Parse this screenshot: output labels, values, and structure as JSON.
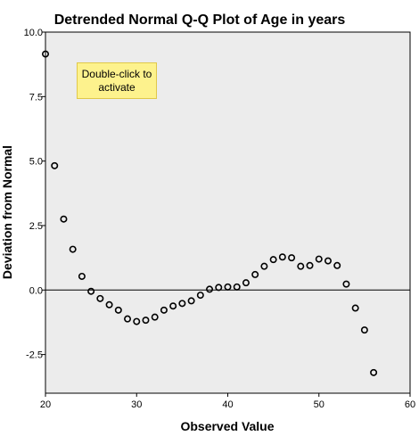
{
  "overlay": {
    "activate_hint": "Double-click to activate"
  },
  "chart_data": {
    "type": "scatter",
    "title": "Detrended Normal Q-Q Plot of Age in years",
    "xlabel": "Observed Value",
    "ylabel": "Deviation from Normal",
    "xlim": [
      20,
      60
    ],
    "ylim": [
      -4,
      10
    ],
    "x_ticks": [
      20,
      30,
      40,
      50,
      60
    ],
    "x_tick_labels": [
      "20",
      "30",
      "40",
      "50",
      "60"
    ],
    "y_ticks": [
      10,
      7.5,
      5,
      2.5,
      0,
      -2.5
    ],
    "y_tick_labels": [
      "10.0",
      "7.5",
      "5.0",
      "2.5",
      "0.0",
      "-2.5"
    ],
    "reference_line": {
      "y": 0
    },
    "grid": false,
    "background": "#ececec",
    "marker": "open-circle",
    "points": [
      {
        "x": 20,
        "y": 9.15
      },
      {
        "x": 21,
        "y": 4.82
      },
      {
        "x": 22,
        "y": 2.75
      },
      {
        "x": 23,
        "y": 1.58
      },
      {
        "x": 24,
        "y": 0.53
      },
      {
        "x": 25,
        "y": -0.05
      },
      {
        "x": 26,
        "y": -0.33
      },
      {
        "x": 27,
        "y": -0.57
      },
      {
        "x": 28,
        "y": -0.78
      },
      {
        "x": 29,
        "y": -1.12
      },
      {
        "x": 30,
        "y": -1.22
      },
      {
        "x": 31,
        "y": -1.17
      },
      {
        "x": 32,
        "y": -1.05
      },
      {
        "x": 33,
        "y": -0.78
      },
      {
        "x": 34,
        "y": -0.62
      },
      {
        "x": 35,
        "y": -0.52
      },
      {
        "x": 36,
        "y": -0.42
      },
      {
        "x": 37,
        "y": -0.2
      },
      {
        "x": 38,
        "y": 0.03
      },
      {
        "x": 39,
        "y": 0.1
      },
      {
        "x": 40,
        "y": 0.12
      },
      {
        "x": 41,
        "y": 0.12
      },
      {
        "x": 42,
        "y": 0.28
      },
      {
        "x": 43,
        "y": 0.6
      },
      {
        "x": 44,
        "y": 0.92
      },
      {
        "x": 45,
        "y": 1.18
      },
      {
        "x": 46,
        "y": 1.28
      },
      {
        "x": 47,
        "y": 1.25
      },
      {
        "x": 48,
        "y": 0.92
      },
      {
        "x": 49,
        "y": 0.95
      },
      {
        "x": 50,
        "y": 1.2
      },
      {
        "x": 51,
        "y": 1.13
      },
      {
        "x": 52,
        "y": 0.95
      },
      {
        "x": 53,
        "y": 0.23
      },
      {
        "x": 54,
        "y": -0.7
      },
      {
        "x": 55,
        "y": -1.55
      },
      {
        "x": 56,
        "y": -3.2
      }
    ]
  }
}
